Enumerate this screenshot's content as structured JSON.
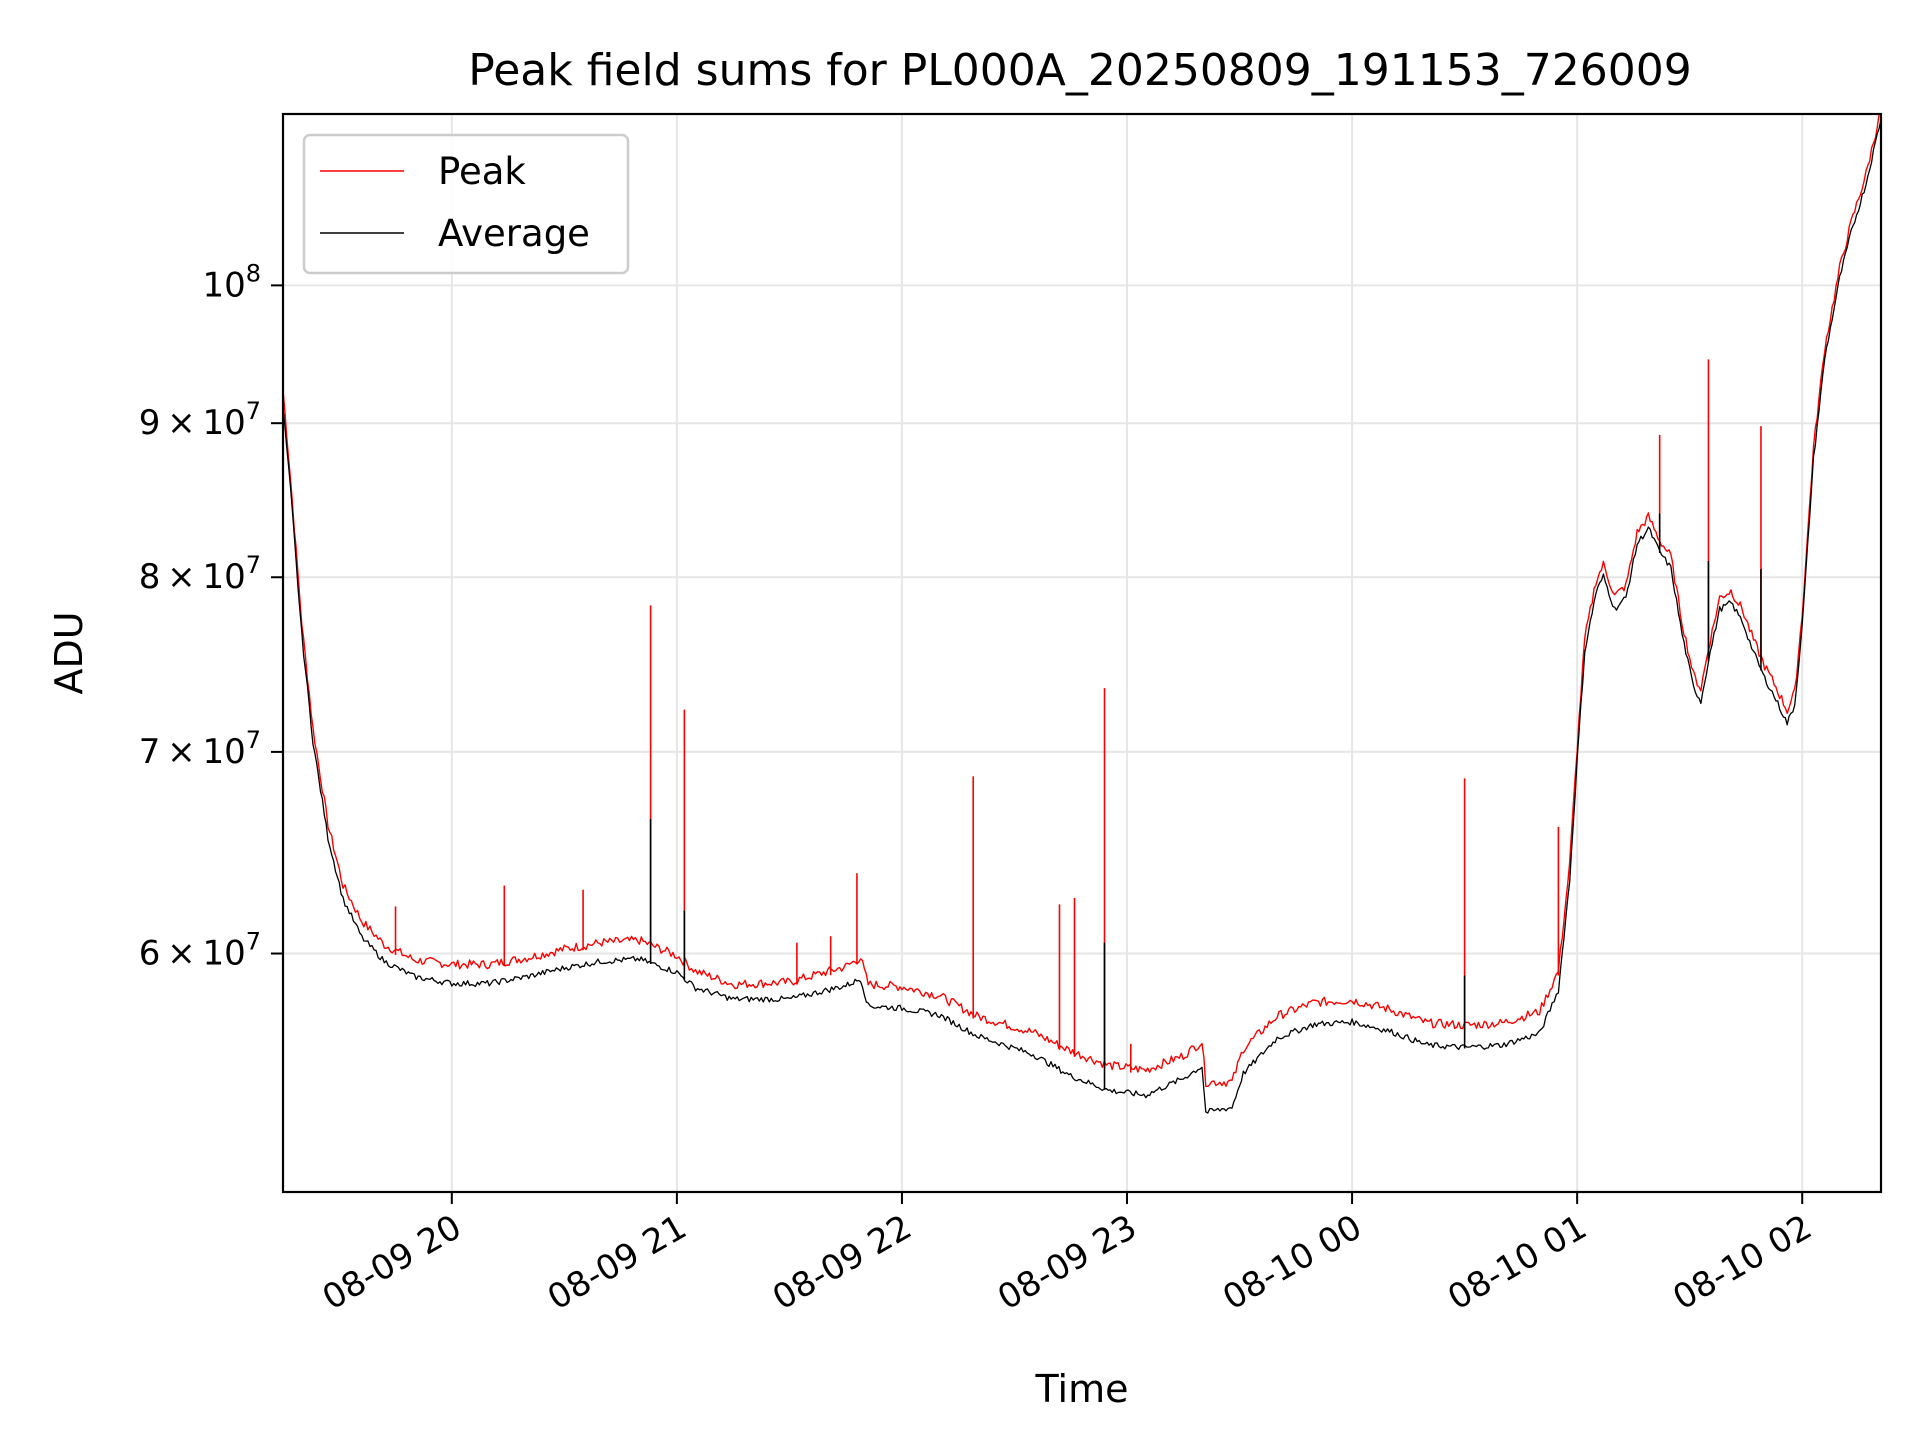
{
  "chart_data": {
    "type": "line",
    "title": "Peak field sums for PL000A_20250809_191153_726009",
    "xlabel": "Time",
    "ylabel": "ADU",
    "yscale": "log",
    "ylim": [
      50000000,
      114000000
    ],
    "xlim": [
      "2025-08-09 19:15",
      "2025-08-10 02:21"
    ],
    "x_ticks": [
      {
        "t": "2025-08-09 20:00",
        "label": "08-09 20"
      },
      {
        "t": "2025-08-09 21:00",
        "label": "08-09 21"
      },
      {
        "t": "2025-08-09 22:00",
        "label": "08-09 22"
      },
      {
        "t": "2025-08-09 23:00",
        "label": "08-09 23"
      },
      {
        "t": "2025-08-10 00:00",
        "label": "08-10 00"
      },
      {
        "t": "2025-08-10 01:00",
        "label": "08-10 01"
      },
      {
        "t": "2025-08-10 02:00",
        "label": "08-10 02"
      }
    ],
    "y_ticks": [
      {
        "v": 60000000,
        "mant": "6",
        "exp": "7"
      },
      {
        "v": 70000000,
        "mant": "7",
        "exp": "7"
      },
      {
        "v": 80000000,
        "mant": "8",
        "exp": "7"
      },
      {
        "v": 90000000,
        "mant": "9",
        "exp": "7"
      },
      {
        "v": 100000000,
        "mant": "",
        "exp": "8"
      }
    ],
    "grid": true,
    "legend_position": "upper-left",
    "series": [
      {
        "name": "Peak",
        "color": "#ff0000",
        "points": [
          [
            "2025-08-09 19:15",
            92000000
          ],
          [
            "2025-08-09 19:17",
            86000000
          ],
          [
            "2025-08-09 19:20",
            77000000
          ],
          [
            "2025-08-09 19:23",
            71000000
          ],
          [
            "2025-08-09 19:27",
            66000000
          ],
          [
            "2025-08-09 19:31",
            63000000
          ],
          [
            "2025-08-09 19:36",
            61300000
          ],
          [
            "2025-08-09 19:42",
            60200000
          ],
          [
            "2025-08-09 19:50",
            59500000
          ],
          [
            "2025-08-09 20:00",
            59300000
          ],
          [
            "2025-08-09 20:10",
            59300000
          ],
          [
            "2025-08-09 20:20",
            59600000
          ],
          [
            "2025-08-09 20:30",
            60000000
          ],
          [
            "2025-08-09 20:40",
            60300000
          ],
          [
            "2025-08-09 20:50",
            60400000
          ],
          [
            "2025-08-09 21:00",
            59700000
          ],
          [
            "2025-08-09 21:05",
            59000000
          ],
          [
            "2025-08-09 21:15",
            58400000
          ],
          [
            "2025-08-09 21:30",
            58500000
          ],
          [
            "2025-08-09 21:45",
            59200000
          ],
          [
            "2025-08-09 21:49",
            59600000
          ],
          [
            "2025-08-09 21:51",
            58400000
          ],
          [
            "2025-08-09 22:00",
            58300000
          ],
          [
            "2025-08-09 22:10",
            57900000
          ],
          [
            "2025-08-09 22:20",
            57000000
          ],
          [
            "2025-08-09 22:35",
            56300000
          ],
          [
            "2025-08-09 22:45",
            55500000
          ],
          [
            "2025-08-09 22:55",
            54900000
          ],
          [
            "2025-08-09 23:05",
            54700000
          ],
          [
            "2025-08-09 23:15",
            55300000
          ],
          [
            "2025-08-09 23:20",
            55900000
          ],
          [
            "2025-08-09 23:21",
            54200000
          ],
          [
            "2025-08-09 23:28",
            54200000
          ],
          [
            "2025-08-09 23:31",
            55600000
          ],
          [
            "2025-08-09 23:40",
            57000000
          ],
          [
            "2025-08-09 23:50",
            57600000
          ],
          [
            "2025-08-10 00:00",
            57700000
          ],
          [
            "2025-08-10 00:10",
            57300000
          ],
          [
            "2025-08-10 00:20",
            56700000
          ],
          [
            "2025-08-10 00:30",
            56600000
          ],
          [
            "2025-08-10 00:40",
            56700000
          ],
          [
            "2025-08-10 00:50",
            57200000
          ],
          [
            "2025-08-10 00:55",
            59000000
          ],
          [
            "2025-08-10 00:58",
            64000000
          ],
          [
            "2025-08-10 01:00",
            70000000
          ],
          [
            "2025-08-10 01:02",
            76000000
          ],
          [
            "2025-08-10 01:05",
            79500000
          ],
          [
            "2025-08-10 01:07",
            80500000
          ],
          [
            "2025-08-10 01:10",
            78600000
          ],
          [
            "2025-08-10 01:13",
            79200000
          ],
          [
            "2025-08-10 01:16",
            82500000
          ],
          [
            "2025-08-10 01:19",
            83500000
          ],
          [
            "2025-08-10 01:22",
            82000000
          ],
          [
            "2025-08-10 01:25",
            81000000
          ],
          [
            "2025-08-10 01:28",
            77000000
          ],
          [
            "2025-08-10 01:31",
            74000000
          ],
          [
            "2025-08-10 01:33",
            73200000
          ],
          [
            "2025-08-10 01:35",
            75500000
          ],
          [
            "2025-08-10 01:38",
            78500000
          ],
          [
            "2025-08-10 01:41",
            78900000
          ],
          [
            "2025-08-10 01:44",
            77800000
          ],
          [
            "2025-08-10 01:47",
            76000000
          ],
          [
            "2025-08-10 01:50",
            74500000
          ],
          [
            "2025-08-10 01:53",
            73300000
          ],
          [
            "2025-08-10 01:56",
            72000000
          ],
          [
            "2025-08-10 01:58",
            73000000
          ],
          [
            "2025-08-10 02:00",
            77500000
          ],
          [
            "2025-08-10 02:03",
            88000000
          ],
          [
            "2025-08-10 02:06",
            95000000
          ],
          [
            "2025-08-10 02:10",
            101000000
          ],
          [
            "2025-08-10 02:13",
            104500000
          ],
          [
            "2025-08-10 02:17",
            108500000
          ],
          [
            "2025-08-10 02:21",
            114000000
          ]
        ],
        "spikes": [
          [
            "2025-08-09 19:45",
            62200000
          ],
          [
            "2025-08-09 20:14",
            63200000
          ],
          [
            "2025-08-09 20:35",
            63000000
          ],
          [
            "2025-08-09 20:53",
            78300000
          ],
          [
            "2025-08-09 21:02",
            72300000
          ],
          [
            "2025-08-09 21:32",
            60500000
          ],
          [
            "2025-08-09 21:41",
            60800000
          ],
          [
            "2025-08-09 21:48",
            63800000
          ],
          [
            "2025-08-09 22:19",
            68700000
          ],
          [
            "2025-08-09 22:42",
            62300000
          ],
          [
            "2025-08-09 22:46",
            62600000
          ],
          [
            "2025-08-09 22:54",
            73500000
          ],
          [
            "2025-08-09 23:01",
            56000000
          ],
          [
            "2025-08-10 00:30",
            68600000
          ],
          [
            "2025-08-10 00:55",
            66100000
          ],
          [
            "2025-08-10 01:22",
            89200000
          ],
          [
            "2025-08-10 01:35",
            94500000
          ],
          [
            "2025-08-10 01:49",
            89800000
          ]
        ]
      },
      {
        "name": "Average",
        "color": "#000000",
        "points": [
          [
            "2025-08-09 19:15",
            91000000
          ],
          [
            "2025-08-09 19:17",
            85500000
          ],
          [
            "2025-08-09 19:20",
            76500000
          ],
          [
            "2025-08-09 19:23",
            70500000
          ],
          [
            "2025-08-09 19:27",
            65500000
          ],
          [
            "2025-08-09 19:31",
            62500000
          ],
          [
            "2025-08-09 19:36",
            60700000
          ],
          [
            "2025-08-09 19:42",
            59600000
          ],
          [
            "2025-08-09 19:50",
            58900000
          ],
          [
            "2025-08-09 20:00",
            58600000
          ],
          [
            "2025-08-09 20:10",
            58600000
          ],
          [
            "2025-08-09 20:20",
            58900000
          ],
          [
            "2025-08-09 20:30",
            59300000
          ],
          [
            "2025-08-09 20:40",
            59600000
          ],
          [
            "2025-08-09 20:50",
            59700000
          ],
          [
            "2025-08-09 21:00",
            59100000
          ],
          [
            "2025-08-09 21:05",
            58400000
          ],
          [
            "2025-08-09 21:15",
            57900000
          ],
          [
            "2025-08-09 21:30",
            57900000
          ],
          [
            "2025-08-09 21:45",
            58500000
          ],
          [
            "2025-08-09 21:49",
            58800000
          ],
          [
            "2025-08-09 21:51",
            57600000
          ],
          [
            "2025-08-09 22:00",
            57500000
          ],
          [
            "2025-08-09 22:10",
            57200000
          ],
          [
            "2025-08-09 22:20",
            56300000
          ],
          [
            "2025-08-09 22:35",
            55500000
          ],
          [
            "2025-08-09 22:45",
            54600000
          ],
          [
            "2025-08-09 22:55",
            54000000
          ],
          [
            "2025-08-09 23:05",
            53800000
          ],
          [
            "2025-08-09 23:15",
            54500000
          ],
          [
            "2025-08-09 23:20",
            55000000
          ],
          [
            "2025-08-09 23:21",
            53100000
          ],
          [
            "2025-08-09 23:28",
            53300000
          ],
          [
            "2025-08-09 23:31",
            54700000
          ],
          [
            "2025-08-09 23:40",
            56200000
          ],
          [
            "2025-08-09 23:50",
            56800000
          ],
          [
            "2025-08-10 00:00",
            56900000
          ],
          [
            "2025-08-10 00:10",
            56500000
          ],
          [
            "2025-08-10 00:20",
            55900000
          ],
          [
            "2025-08-10 00:30",
            55800000
          ],
          [
            "2025-08-10 00:40",
            55900000
          ],
          [
            "2025-08-10 00:50",
            56400000
          ],
          [
            "2025-08-10 00:55",
            58300000
          ],
          [
            "2025-08-10 00:58",
            63400000
          ],
          [
            "2025-08-10 01:00",
            69500000
          ],
          [
            "2025-08-10 01:02",
            75500000
          ],
          [
            "2025-08-10 01:05",
            79000000
          ],
          [
            "2025-08-10 01:07",
            80000000
          ],
          [
            "2025-08-10 01:10",
            78000000
          ],
          [
            "2025-08-10 01:13",
            78700000
          ],
          [
            "2025-08-10 01:16",
            82000000
          ],
          [
            "2025-08-10 01:19",
            83000000
          ],
          [
            "2025-08-10 01:22",
            81500000
          ],
          [
            "2025-08-10 01:25",
            80500000
          ],
          [
            "2025-08-10 01:28",
            76500000
          ],
          [
            "2025-08-10 01:31",
            73500000
          ],
          [
            "2025-08-10 01:33",
            72700000
          ],
          [
            "2025-08-10 01:35",
            75000000
          ],
          [
            "2025-08-10 01:38",
            78000000
          ],
          [
            "2025-08-10 01:41",
            78400000
          ],
          [
            "2025-08-10 01:44",
            77300000
          ],
          [
            "2025-08-10 01:47",
            75500000
          ],
          [
            "2025-08-10 01:50",
            74000000
          ],
          [
            "2025-08-10 01:53",
            72800000
          ],
          [
            "2025-08-10 01:56",
            71500000
          ],
          [
            "2025-08-10 01:58",
            72500000
          ],
          [
            "2025-08-10 02:00",
            77000000
          ],
          [
            "2025-08-10 02:03",
            87500000
          ],
          [
            "2025-08-10 02:06",
            94500000
          ],
          [
            "2025-08-10 02:10",
            100500000
          ],
          [
            "2025-08-10 02:13",
            104000000
          ],
          [
            "2025-08-10 02:17",
            108000000
          ],
          [
            "2025-08-10 02:21",
            113500000
          ]
        ],
        "spikes": [
          [
            "2025-08-09 20:53",
            66500000
          ],
          [
            "2025-08-09 21:02",
            62000000
          ],
          [
            "2025-08-09 22:54",
            60500000
          ],
          [
            "2025-08-10 00:30",
            59000000
          ],
          [
            "2025-08-10 01:22",
            84000000
          ],
          [
            "2025-08-10 01:35",
            81000000
          ],
          [
            "2025-08-10 01:49",
            80500000
          ]
        ]
      }
    ]
  }
}
